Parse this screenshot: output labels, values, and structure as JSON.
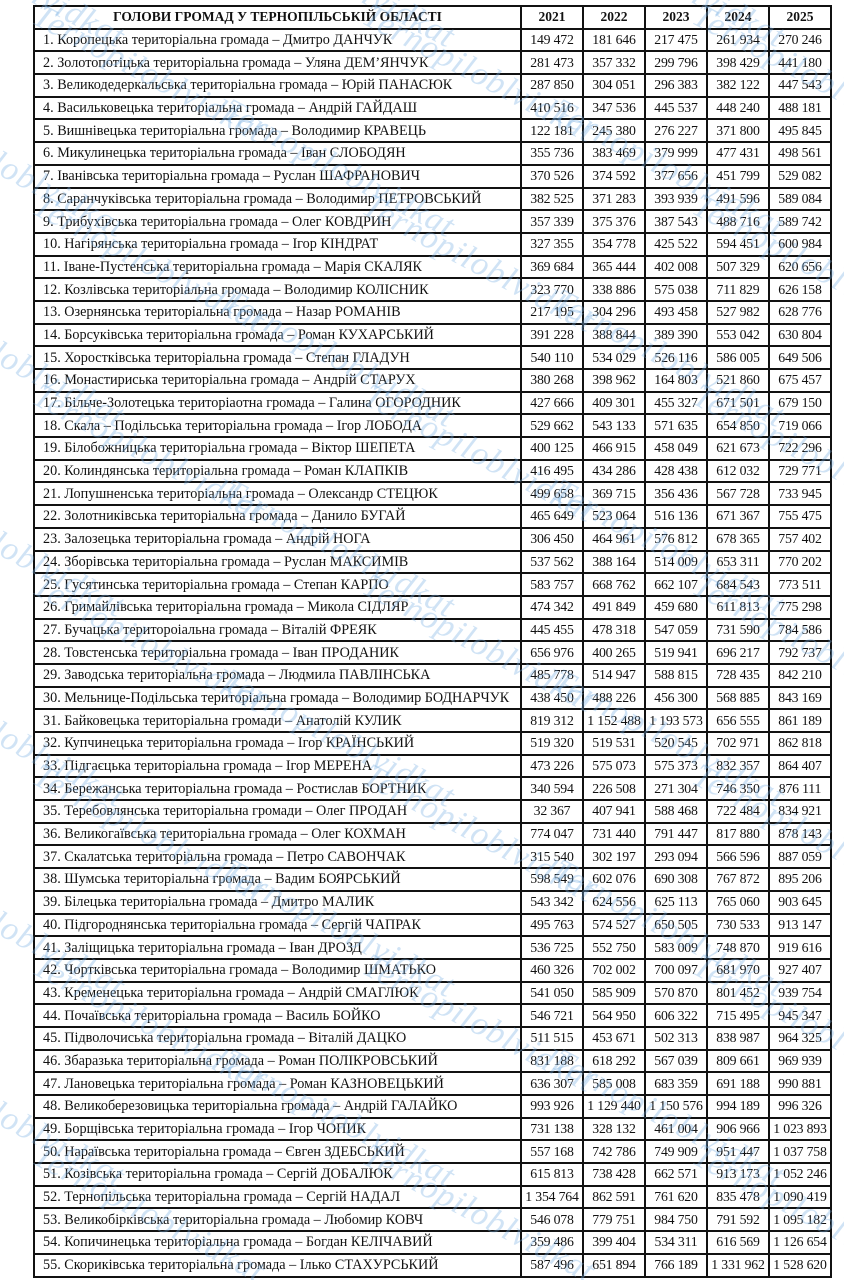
{
  "table": {
    "header": [
      "ГОЛОВИ ГРОМАД У ТЕРНОПІЛЬСЬКІЙ ОБЛАСТІ",
      "2021",
      "2022",
      "2023",
      "2024",
      "2025"
    ],
    "rows": [
      [
        "1. Коропецька територіальна громада – Дмитро ДАНЧУК",
        "149 472",
        "181 646",
        "217 475",
        "261 934",
        "270 246"
      ],
      [
        "2. Золотопотіцька територіальна громада – Уляна ДЕМ’ЯНЧУК",
        "281 473",
        "357 332",
        "299 796",
        "398 429",
        "441 180"
      ],
      [
        "3. Великодедеркальська територіальна громада – Юрій ПАНАСЮК",
        "287 850",
        "304 051",
        "296 383",
        "382 122",
        "447 543"
      ],
      [
        "4. Васильковецька територіальна громада – Андрій ГАЙДАШ",
        "410 516",
        "347 536",
        "445 537",
        "448 240",
        "488 181"
      ],
      [
        "5. Вишнівецька територіальна громада – Володимир КРАВЕЦЬ",
        "122 181",
        "245 380",
        "276 227",
        "371 800",
        "495 845"
      ],
      [
        "6. Микулинецька територіальна громада – Іван СЛОБОДЯН",
        "355 736",
        "383 469",
        "379 999",
        "477 431",
        "498 561"
      ],
      [
        "7. Іванівська територіальна громада – Руслан ШАФРАНОВИЧ",
        "370 526",
        "374 592",
        "377 656",
        "451 799",
        "529 082"
      ],
      [
        "8. Саранчуківська територіальна громада – Володимир ПЕТРОВСЬКИЙ",
        "382 525",
        "371 283",
        "393 939",
        "491 596",
        "589 084"
      ],
      [
        "9. Трибухівська територіальна громада – Олег КОВДРИН",
        "357 339",
        "375 376",
        "387 543",
        "488 716",
        "589 742"
      ],
      [
        "10. Нагірянська територіальна громада – Ігор КІНДРАТ",
        "327 355",
        "354 778",
        "425 522",
        "594 451",
        "600 984"
      ],
      [
        "11. Іване-Пустенська територіальна громада – Марія СКАЛЯК",
        "369 684",
        "365 444",
        "402 008",
        "507 329",
        "620 656"
      ],
      [
        "12. Козлівська територіальна громада – Володимир КОЛІСНИК",
        "323 770",
        "338 886",
        "575 038",
        "711 829",
        "626 158"
      ],
      [
        "13. Озернянська територіальна громада – Назар РОМАНІВ",
        "217 195",
        "304 296",
        "493 458",
        "527 982",
        "628 776"
      ],
      [
        "14. Борсуківська територіальна громада – Роман КУХАРСЬКИЙ",
        "391 228",
        "388 844",
        "389 390",
        "553 042",
        "630 804"
      ],
      [
        "15. Хоростківська територіальна громада – Степан ГЛАДУН",
        "540 110",
        "534 029",
        "526 116",
        "586 005",
        "649 506"
      ],
      [
        "16. Монастириська територіальна громада – Андрій СТАРУХ",
        "380 268",
        "398 962",
        "164 803",
        "521 860",
        "675 457"
      ],
      [
        "17. Більче-Золотецька територіаотна громада – Галина ОГОРОДНИК",
        "427 666",
        "409 301",
        "455 327",
        "671 501",
        "679 150"
      ],
      [
        "18. Скала – Подільська територіальна громада – Ігор ЛОБОДА",
        "529 662",
        "543 133",
        "571 635",
        "654 850",
        "719 066"
      ],
      [
        "19. Білобожницька територіальна громада – Віктор ШЕПЕТА",
        "400 125",
        "466 915",
        "458 049",
        "621 673",
        "722 296"
      ],
      [
        "20. Колиндянська територіальна громада – Роман КЛАПКІВ",
        "416 495",
        "434 286",
        "428 438",
        "612 032",
        "729 771"
      ],
      [
        "21. Лопушненська територіальна громада – Олександр СТЕЦЮК",
        "499 658",
        "369 715",
        "356 436",
        "567 728",
        "733 945"
      ],
      [
        "22. Золотниківська територіальна громада – Данило БУГАЙ",
        "465 649",
        "523 064",
        "516 136",
        "671 367",
        "755 475"
      ],
      [
        "23. Залозецька територіальна громада – Андрій НОГА",
        "306 450",
        "464 961",
        "576 812",
        "678 365",
        "757 402"
      ],
      [
        "24. Зборівська територіальна громада – Руслан МАКСИМІВ",
        "537 562",
        "388 164",
        "514 009",
        "653 311",
        "770 202"
      ],
      [
        "25. Гусятинська територіальна громада – Степан КАРПО",
        "583 757",
        "668 762",
        "662 107",
        "684 543",
        "773 511"
      ],
      [
        "26. Гримайлівська територіальна громада – Микола СІДЛЯР",
        "474 342",
        "491 849",
        "459 680",
        "611 813",
        "775 298"
      ],
      [
        "27. Бучацька територоіальна громада – Віталій ФРЕЯК",
        "445 455",
        "478 318",
        "547 059",
        "731 590",
        "784 586"
      ],
      [
        "28. Товстенська територіальна громада – Іван ПРОДАНИК",
        "656 976",
        "400 265",
        "519 941",
        "696 217",
        "792 737"
      ],
      [
        "29. Заводська територіальна громада – Людмила ПАВЛІНСЬКА",
        "485 778",
        "514 947",
        "588 815",
        "728 435",
        "842 210"
      ],
      [
        "30. Мельнице-Подільська територіальна громада – Володимир БОДНАРЧУК",
        "438 450",
        "488 226",
        "456 300",
        "568 885",
        "843 169"
      ],
      [
        "31. Байковецька територіальна громади – Анатолій КУЛИК",
        "819 312",
        "1 152 488",
        "1 193 573",
        "656 555",
        "861 189"
      ],
      [
        "32. Купчинецька територіальна громада – Ігор КРАЇНСЬКИЙ",
        "519 320",
        "519 531",
        "520 545",
        "702 971",
        "862 818"
      ],
      [
        "33. Підгаєцька територіальна громада – Ігор МЕРЕНА",
        "473 226",
        "575 073",
        "575 373",
        "832 357",
        "864 407"
      ],
      [
        "34. Бережанська територіальна громада – Ростислав БОРТНИК",
        "340 594",
        "226 508",
        "271 304",
        "746 350",
        "876 111"
      ],
      [
        "35. Теребовлянська територіальна громади – Олег ПРОДАН",
        "32 367",
        "407 941",
        "588 468",
        "722 484",
        "834 921"
      ],
      [
        "36. Великогаївська територіальна громада – Олег КОХМАН",
        "774 047",
        "731 440",
        "791 447",
        "817 880",
        "878 143"
      ],
      [
        "37. Скалатська територіальна громада – Петро САВОНЧАК",
        "315 540",
        "302 197",
        "293 094",
        "566 596",
        "887 059"
      ],
      [
        "38. Шумська територіальна громада – Вадим БОЯРСЬКИЙ",
        "598 549",
        "602 076",
        "690 308",
        "767 872",
        "895 206"
      ],
      [
        "39. Білецька територіальна громада – Дмитро МАЛИК",
        "543 342",
        "624 556",
        "625 113",
        "765 060",
        "903 645"
      ],
      [
        "40. Підгороднянська територіальна громада – Сергій ЧАПРАК",
        "495 763",
        "574 527",
        "650 505",
        "730 533",
        "913 147"
      ],
      [
        "41. Заліщицька територіальна громада – Іван ДРОЗД",
        "536 725",
        "552 750",
        "583 009",
        "748 870",
        "919 616"
      ],
      [
        "42. Чортківська територіальна громада – Володимир ШМАТЬКО",
        "460 326",
        "702 002",
        "700 097",
        "681 970",
        "927 407"
      ],
      [
        "43. Кременецька територіальна громада – Андрій СМАГЛЮК",
        "541 050",
        "585 909",
        "570 870",
        "801 452",
        "939 754"
      ],
      [
        "44. Почаївська територіальна громада – Василь БОЙКО",
        "546 721",
        "564 950",
        "606 322",
        "715 495",
        "945 347"
      ],
      [
        "45. Підволочиська територіальна громада – Віталій ДАЦКО",
        "511 515",
        "453 671",
        "502 313",
        "838 987",
        "964 325"
      ],
      [
        "46. Збаразька територіальна громада – Роман ПОЛІКРОВСЬКИЙ",
        "831 188",
        "618 292",
        "567 039",
        "809 661",
        "969 939"
      ],
      [
        "47. Лановецька територіальна громада – Роман КАЗНОВЕЦЬКИЙ",
        "636 307",
        "585 008",
        "683 359",
        "691 188",
        "990 881"
      ],
      [
        "48. Великоберезовицька територіальна громада – Андрій ГАЛАЙКО",
        "993 926",
        "1 129 440",
        "1 150 576",
        "994 189",
        "996 326"
      ],
      [
        "49. Борщівська територіальна громада – Ігор ЧОПИК",
        "731 138",
        "328 132",
        "461 004",
        "906 966",
        "1 023 893"
      ],
      [
        "50. Нараївська територіальна громада – Євген ЗДЕБСЬКИЙ",
        "557 168",
        "742 786",
        "749 909",
        "951 447",
        "1 037 758"
      ],
      [
        "51. Козівська територіальна громада – Сергій ДОБАЛЮК",
        "615 813",
        "738 428",
        "662 571",
        "913 173",
        "1 052 246"
      ],
      [
        "52. Тернопільська територіальна громада – Сергій НАДАЛ",
        "1 354 764",
        "862 591",
        "761 620",
        "835 478",
        "1 090 419"
      ],
      [
        "53. Великобірківська територіальна громада – Любомир КОВЧ",
        "546 078",
        "779 751",
        "984 750",
        "791 592",
        "1 095 182"
      ],
      [
        "54. Копичинецька територіальна громада – Богдан КЕЛІЧАВИЙ",
        "359 486",
        "399 404",
        "534 311",
        "616 569",
        "1 126 654"
      ],
      [
        "55. Скориківська територіальна громада – Ілько СТАХУРСЬКИЙ",
        "587 496",
        "651 894",
        "766 189",
        "1 331 962",
        "1 528 620"
      ]
    ]
  },
  "watermark": "Ternopiloblvidkat",
  "colors": {
    "watermark": "#78afe1",
    "border": "#111111"
  }
}
